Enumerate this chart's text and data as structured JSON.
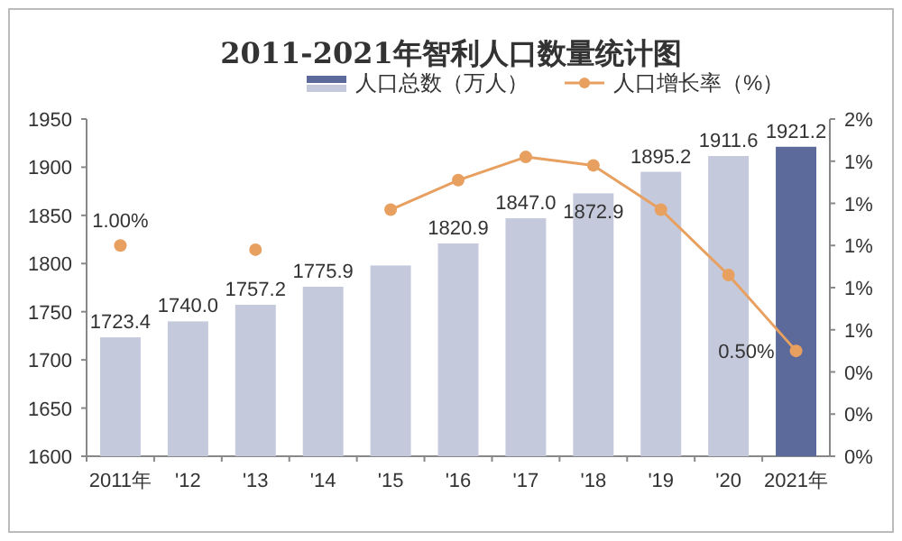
{
  "chart_data": {
    "type": "bar",
    "title": "2011-2021年智利人口数量统计图",
    "categories": [
      "2011年",
      "'12",
      "'13",
      "'14",
      "'15",
      "'16",
      "'17",
      "'18",
      "'19",
      "'20",
      "2021年"
    ],
    "series": [
      {
        "name": "人口总数（万人）",
        "colors": [
          "#c5c9dc",
          "#c5c9dc",
          "#c5c9dc",
          "#c5c9dc",
          "#c5c9dc",
          "#c5c9dc",
          "#c5c9dc",
          "#c5c9dc",
          "#c5c9dc",
          "#c5c9dc",
          "#5b6a9a"
        ],
        "values": [
          1723.4,
          1740.0,
          1757.2,
          1775.9,
          1798.0,
          1820.9,
          1847.0,
          1872.9,
          1895.2,
          1911.6,
          1921.2
        ],
        "value_labels": [
          "1723.4",
          "1740.0",
          "1757.2",
          "1775.9",
          null,
          "1820.9",
          "1847.0",
          "1872.9",
          "1895.2",
          "1911.6",
          "1921.2"
        ]
      },
      {
        "name": "人口增长率（%）",
        "type": "line",
        "axis": "y2",
        "color": "#e8a060",
        "values": [
          1.0,
          null,
          0.98,
          null,
          1.17,
          1.31,
          1.42,
          1.38,
          1.17,
          0.86,
          0.5
        ],
        "value_labels": [
          "1.00%",
          null,
          null,
          null,
          null,
          null,
          null,
          null,
          null,
          null,
          "0.50%"
        ]
      }
    ],
    "ylim": [
      1600,
      1950
    ],
    "yticks": [
      1600,
      1650,
      1700,
      1750,
      1800,
      1850,
      1900,
      1950
    ],
    "y2lim": [
      0,
      1.6
    ],
    "y2ticks": [
      {
        "value": 0,
        "label": "0%"
      },
      {
        "value": 0.2,
        "label": "0%"
      },
      {
        "value": 0.4,
        "label": "0%"
      },
      {
        "value": 0.6,
        "label": "1%"
      },
      {
        "value": 0.8,
        "label": "1%"
      },
      {
        "value": 1.0,
        "label": "1%"
      },
      {
        "value": 1.2,
        "label": "1%"
      },
      {
        "value": 1.4,
        "label": "1%"
      },
      {
        "value": 1.6,
        "label": "2%"
      }
    ],
    "marker": "circle",
    "legend": "top",
    "grid": false
  }
}
